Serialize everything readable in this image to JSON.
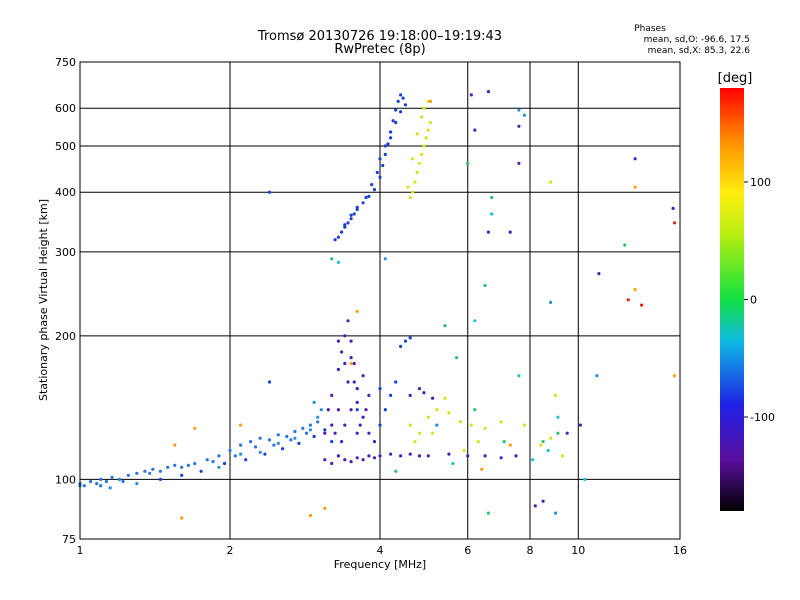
{
  "header": {
    "title_line1": "Tromsø 20130726 19:18:00–19:19:43",
    "title_line2": "RwPretec (8p)",
    "stats_title": "Phases",
    "stats_o": "mean, sd,O: -96.6, 17.5",
    "stats_x": "mean, sd,X:  85.3, 22.6"
  },
  "chart_data": {
    "type": "scatter",
    "xlabel": "Frequency [MHz]",
    "ylabel": "Stationary phase Virtual Height [km]",
    "xscale": "log",
    "yscale": "log",
    "xlim": [
      1,
      16
    ],
    "ylim": [
      75,
      750
    ],
    "grid": true,
    "x_ticks": [
      1,
      2,
      4,
      6,
      8,
      10,
      16
    ],
    "x_tick_labels": [
      "1",
      "2",
      "4",
      "6",
      "8",
      "10",
      "16"
    ],
    "y_ticks": [
      75,
      100,
      200,
      300,
      400,
      500,
      600,
      750
    ],
    "y_tick_labels": [
      "75",
      "100",
      "200",
      "300",
      "400",
      "500",
      "600",
      "750"
    ],
    "colorbar": {
      "label": "[deg]",
      "range": [
        -180,
        180
      ],
      "ticks": [
        100,
        0,
        -100
      ],
      "tick_labels": [
        "100",
        "0",
        "-100"
      ]
    },
    "series": [
      {
        "color": "#2a73e8",
        "points": [
          [
            1.0,
            98
          ],
          [
            1.02,
            97
          ],
          [
            1.05,
            99
          ],
          [
            1.08,
            98
          ],
          [
            1.1,
            100
          ],
          [
            1.13,
            99
          ],
          [
            1.16,
            101
          ],
          [
            1.2,
            100
          ],
          [
            1.25,
            102
          ],
          [
            1.3,
            103
          ],
          [
            1.35,
            104
          ],
          [
            1.4,
            105
          ],
          [
            1.45,
            104
          ],
          [
            1.5,
            106
          ],
          [
            1.55,
            107
          ],
          [
            1.6,
            106
          ],
          [
            1.7,
            108
          ],
          [
            1.8,
            110
          ],
          [
            1.9,
            112
          ],
          [
            2.0,
            115
          ],
          [
            2.1,
            118
          ],
          [
            2.2,
            120
          ],
          [
            2.3,
            122
          ],
          [
            2.4,
            121
          ],
          [
            2.5,
            124
          ],
          [
            2.6,
            123
          ],
          [
            2.7,
            126
          ],
          [
            2.8,
            128
          ],
          [
            2.9,
            130
          ],
          [
            3.0,
            132
          ],
          [
            1.1,
            97
          ],
          [
            1.22,
            99
          ],
          [
            1.38,
            103
          ],
          [
            1.65,
            107
          ],
          [
            1.85,
            109
          ],
          [
            2.05,
            112
          ],
          [
            2.25,
            117
          ],
          [
            2.45,
            118
          ],
          [
            2.65,
            121
          ],
          [
            2.85,
            125
          ]
        ]
      },
      {
        "color": "#1c3fd6",
        "points": [
          [
            3.25,
            318
          ],
          [
            3.3,
            322
          ],
          [
            3.35,
            330
          ],
          [
            3.4,
            338
          ],
          [
            3.45,
            345
          ],
          [
            3.5,
            352
          ],
          [
            3.55,
            360
          ],
          [
            3.6,
            368
          ],
          [
            3.7,
            380
          ],
          [
            3.8,
            392
          ],
          [
            3.9,
            405
          ],
          [
            4.0,
            430
          ],
          [
            4.05,
            455
          ],
          [
            4.1,
            480
          ],
          [
            4.15,
            505
          ],
          [
            4.2,
            535
          ],
          [
            4.25,
            565
          ],
          [
            4.3,
            595
          ],
          [
            4.35,
            620
          ],
          [
            4.4,
            640
          ],
          [
            4.45,
            630
          ],
          [
            4.5,
            610
          ],
          [
            4.4,
            590
          ],
          [
            4.3,
            560
          ],
          [
            4.2,
            520
          ],
          [
            4.1,
            500
          ],
          [
            4.0,
            470
          ],
          [
            3.95,
            440
          ],
          [
            3.85,
            415
          ],
          [
            3.75,
            390
          ],
          [
            3.6,
            372
          ],
          [
            3.5,
            358
          ],
          [
            3.4,
            342
          ],
          [
            1.6,
            102
          ],
          [
            1.75,
            104
          ],
          [
            1.95,
            108
          ],
          [
            2.15,
            110
          ],
          [
            2.35,
            113
          ],
          [
            2.55,
            116
          ],
          [
            2.75,
            119
          ],
          [
            2.95,
            123
          ],
          [
            3.1,
            127
          ],
          [
            1.45,
            100
          ],
          [
            2.4,
            400
          ],
          [
            2.4,
            160
          ],
          [
            3.2,
            120
          ],
          [
            3.6,
            140
          ],
          [
            4.0,
            130
          ],
          [
            4.3,
            160
          ],
          [
            4.5,
            195
          ],
          [
            4.4,
            190
          ],
          [
            4.6,
            198
          ],
          [
            4.2,
            150
          ],
          [
            4.0,
            155
          ],
          [
            4.1,
            140
          ]
        ]
      },
      {
        "color": "#4a1fb8",
        "points": [
          [
            3.1,
            110
          ],
          [
            3.2,
            108
          ],
          [
            3.3,
            112
          ],
          [
            3.4,
            110
          ],
          [
            3.5,
            109
          ],
          [
            3.6,
            111
          ],
          [
            3.7,
            110
          ],
          [
            3.8,
            112
          ],
          [
            3.9,
            111
          ],
          [
            4.0,
            112
          ],
          [
            4.2,
            113
          ],
          [
            4.4,
            112
          ],
          [
            4.6,
            113
          ],
          [
            4.8,
            112
          ],
          [
            5.0,
            112
          ],
          [
            5.5,
            113
          ],
          [
            6.0,
            112
          ],
          [
            6.5,
            112
          ],
          [
            7.0,
            111
          ],
          [
            7.5,
            112
          ],
          [
            3.2,
            150
          ],
          [
            3.3,
            170
          ],
          [
            3.35,
            185
          ],
          [
            3.4,
            200
          ],
          [
            3.45,
            215
          ],
          [
            3.5,
            180
          ],
          [
            3.55,
            160
          ],
          [
            3.6,
            145
          ],
          [
            3.7,
            135
          ],
          [
            3.8,
            125
          ],
          [
            3.4,
            130
          ],
          [
            3.5,
            140
          ],
          [
            3.3,
            140
          ],
          [
            3.25,
            125
          ],
          [
            3.35,
            120
          ],
          [
            3.6,
            155
          ],
          [
            3.7,
            165
          ],
          [
            3.8,
            150
          ],
          [
            3.2,
            130
          ],
          [
            3.45,
            160
          ],
          [
            3.55,
            175
          ],
          [
            3.65,
            130
          ],
          [
            3.75,
            140
          ],
          [
            3.9,
            120
          ],
          [
            3.3,
            195
          ],
          [
            3.5,
            195
          ],
          [
            3.4,
            175
          ],
          [
            3.1,
            125
          ],
          [
            3.15,
            140
          ],
          [
            3.6,
            125
          ],
          [
            4.6,
            150
          ],
          [
            4.8,
            155
          ],
          [
            4.9,
            152
          ],
          [
            5.1,
            148
          ],
          [
            6.6,
            650
          ],
          [
            7.6,
            550
          ],
          [
            7.6,
            460
          ],
          [
            6.2,
            540
          ],
          [
            6.1,
            640
          ],
          [
            6.6,
            330
          ],
          [
            7.3,
            330
          ],
          [
            8.2,
            88
          ],
          [
            10.1,
            130
          ],
          [
            9.5,
            125
          ],
          [
            13.0,
            470
          ],
          [
            15.5,
            370
          ],
          [
            11.0,
            270
          ],
          [
            8.5,
            90
          ]
        ]
      },
      {
        "color": "#2a8fe0",
        "points": [
          [
            1.0,
            97
          ],
          [
            1.15,
            96
          ],
          [
            1.3,
            98
          ],
          [
            1.9,
            106
          ],
          [
            2.1,
            113
          ],
          [
            2.3,
            114
          ],
          [
            2.5,
            119
          ],
          [
            2.7,
            122
          ],
          [
            2.9,
            127
          ],
          [
            3.0,
            135
          ],
          [
            3.05,
            140
          ],
          [
            2.95,
            145
          ],
          [
            7.6,
            595
          ],
          [
            8.8,
            235
          ],
          [
            9.0,
            85
          ],
          [
            7.8,
            580
          ],
          [
            5.2,
            130
          ],
          [
            10.9,
            165
          ],
          [
            4.1,
            290
          ]
        ]
      },
      {
        "color": "#d6e21a",
        "points": [
          [
            4.6,
            390
          ],
          [
            4.65,
            400
          ],
          [
            4.7,
            420
          ],
          [
            4.75,
            440
          ],
          [
            4.8,
            460
          ],
          [
            4.85,
            480
          ],
          [
            4.9,
            500
          ],
          [
            4.95,
            520
          ],
          [
            5.0,
            540
          ],
          [
            5.05,
            560
          ],
          [
            4.85,
            575
          ],
          [
            4.75,
            530
          ],
          [
            4.65,
            470
          ],
          [
            4.55,
            410
          ],
          [
            5.0,
            620
          ],
          [
            4.9,
            600
          ],
          [
            4.6,
            130
          ],
          [
            4.8,
            125
          ],
          [
            5.0,
            135
          ],
          [
            5.2,
            140
          ],
          [
            5.5,
            138
          ],
          [
            5.8,
            132
          ],
          [
            6.1,
            130
          ],
          [
            6.5,
            128
          ],
          [
            7.0,
            132
          ],
          [
            7.8,
            130
          ],
          [
            8.4,
            118
          ],
          [
            8.8,
            122
          ],
          [
            9.0,
            150
          ],
          [
            9.3,
            112
          ],
          [
            4.7,
            120
          ],
          [
            5.1,
            125
          ],
          [
            5.4,
            148
          ],
          [
            8.8,
            420
          ],
          [
            5.9,
            115
          ],
          [
            6.3,
            120
          ]
        ]
      },
      {
        "color": "#ff9a1a",
        "points": [
          [
            1.6,
            83
          ],
          [
            1.55,
            118
          ],
          [
            1.7,
            128
          ],
          [
            2.9,
            84
          ],
          [
            3.6,
            225
          ],
          [
            3.1,
            87
          ],
          [
            5.05,
            620
          ],
          [
            13.0,
            410
          ],
          [
            13.0,
            250
          ],
          [
            15.6,
            165
          ],
          [
            6.4,
            105
          ],
          [
            7.3,
            118
          ],
          [
            3.5,
            175
          ],
          [
            2.1,
            130
          ]
        ]
      },
      {
        "color": "#2ac26a",
        "points": [
          [
            5.7,
            180
          ],
          [
            6.5,
            255
          ],
          [
            5.4,
            210
          ],
          [
            6.0,
            460
          ],
          [
            12.4,
            310
          ],
          [
            4.3,
            104
          ],
          [
            6.6,
            85
          ],
          [
            7.1,
            120
          ],
          [
            8.5,
            120
          ],
          [
            6.2,
            140
          ],
          [
            9.1,
            125
          ],
          [
            3.2,
            290
          ],
          [
            6.7,
            390
          ]
        ]
      },
      {
        "color": "#18c8c8",
        "points": [
          [
            3.3,
            285
          ],
          [
            6.7,
            360
          ],
          [
            9.1,
            135
          ],
          [
            8.1,
            110
          ],
          [
            7.6,
            165
          ],
          [
            6.2,
            215
          ],
          [
            10.3,
            100
          ],
          [
            5.6,
            108
          ],
          [
            8.7,
            115
          ]
        ]
      },
      {
        "color": "#e8201a",
        "points": [
          [
            13.4,
            232
          ],
          [
            12.6,
            238
          ],
          [
            15.6,
            345
          ]
        ]
      }
    ]
  }
}
